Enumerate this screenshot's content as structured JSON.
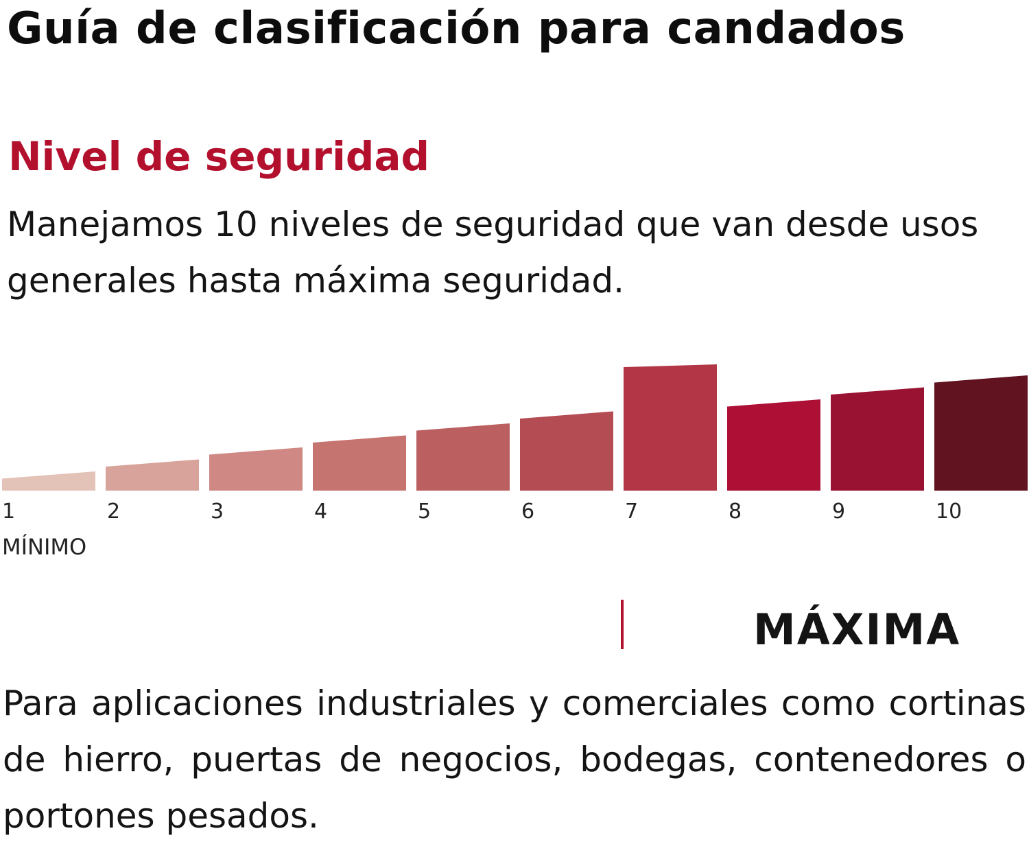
{
  "header": {
    "title": "Guía de clasificación para candados"
  },
  "section": {
    "subtitle": "Nivel de seguridad",
    "description": "Manejamos 10 niveles de seguridad que van desde usos generales hasta máxima seguridad."
  },
  "colors": {
    "accent": "#b3102e",
    "text": "#141414"
  },
  "chart_data": {
    "type": "bar",
    "categories": [
      "1",
      "2",
      "3",
      "4",
      "5",
      "6",
      "7",
      "8",
      "9",
      "10"
    ],
    "values": [
      1,
      2,
      3,
      4,
      5,
      6,
      10,
      7,
      8,
      9
    ],
    "colors": [
      "#e3c2b8",
      "#d8a39b",
      "#cf8883",
      "#c67470",
      "#bc5f60",
      "#b44c54",
      "#b23645",
      "#ad0f35",
      "#991232",
      "#611320"
    ],
    "highlight_index": 6,
    "min_label": "MÍNIMO",
    "ylim": [
      0,
      10
    ],
    "grid": false
  },
  "highlight": {
    "label": "MÁXIMA",
    "description": "Para aplicaciones industriales y comerciales como cortinas de hierro, puertas de negocios, bodegas, contenedores o portones pesados."
  }
}
